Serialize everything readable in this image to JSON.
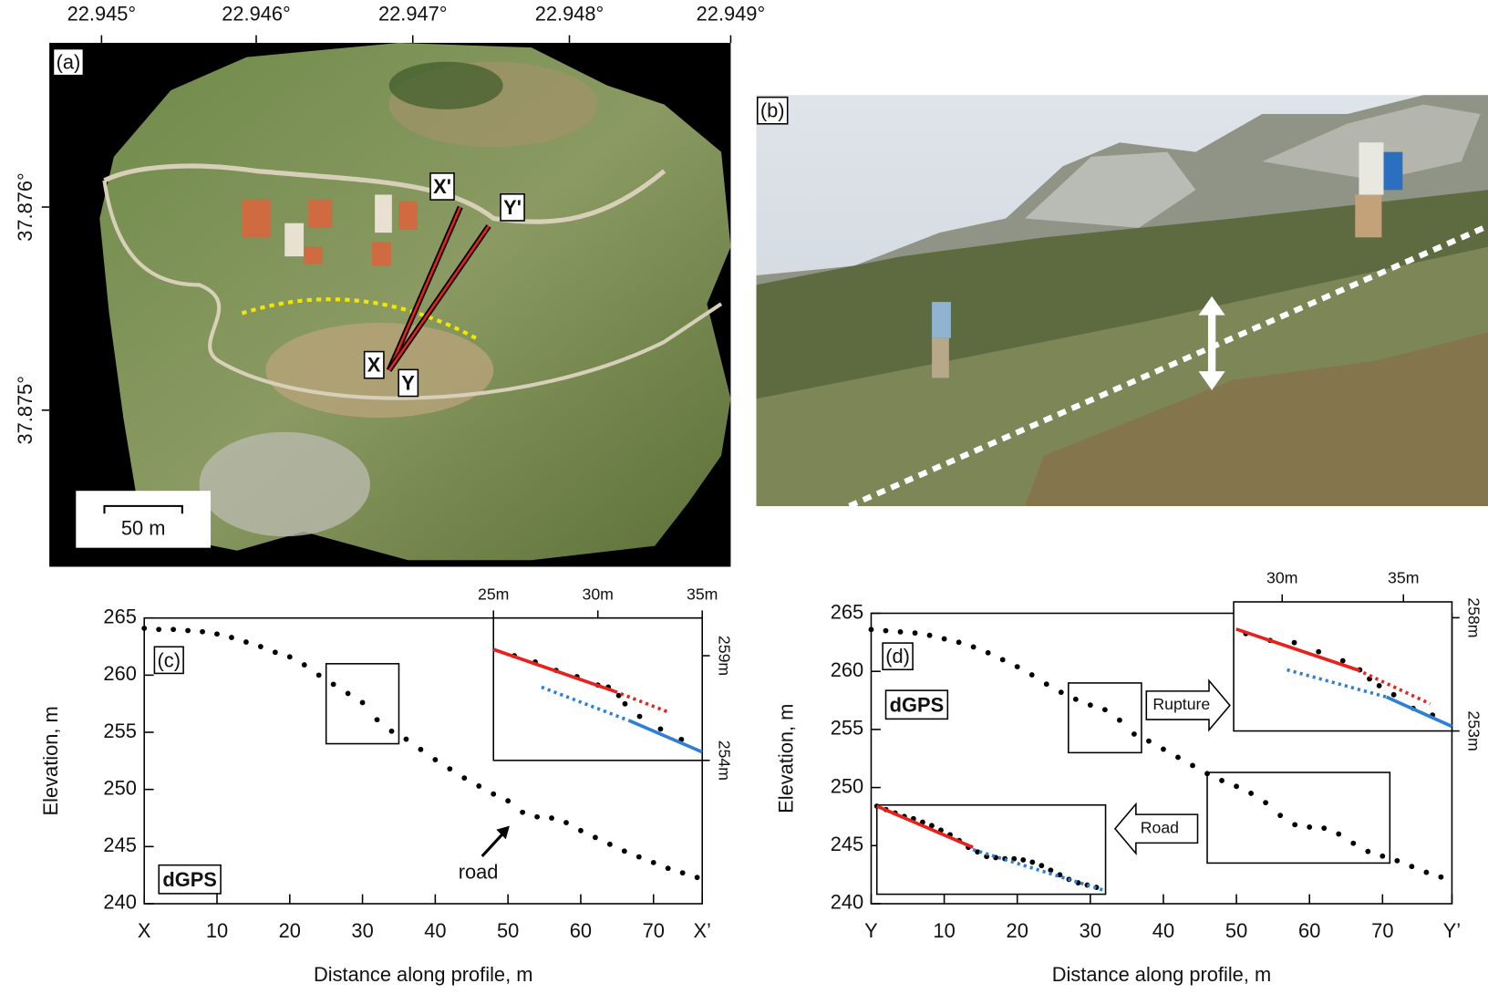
{
  "map": {
    "label": "(a)",
    "lon_ticks": [
      "22.945°",
      "22.946°",
      "22.947°",
      "22.948°",
      "22.949°"
    ],
    "lat_ticks": [
      "37.876°",
      "37.875°"
    ],
    "profile_labels": [
      "X'",
      "Y'",
      "X",
      "Y"
    ],
    "scale_bar": "50 m"
  },
  "photo": {
    "label": "(b)"
  },
  "chart_data": [
    {
      "type": "scatter",
      "panel_label": "(c)",
      "xlabel": "Distance along profile, m",
      "ylabel": "Elevation, m",
      "x": [
        0,
        2,
        4,
        6,
        8,
        10,
        12,
        14,
        16,
        18,
        20,
        22,
        24,
        26,
        28,
        30,
        32,
        34,
        36,
        38,
        40,
        42,
        44,
        46,
        48,
        50,
        52,
        54,
        56,
        58,
        60,
        62,
        64,
        66,
        68,
        70,
        72,
        74,
        76
      ],
      "values": [
        264.1,
        264.0,
        264.0,
        263.9,
        263.8,
        263.6,
        263.3,
        262.9,
        262.5,
        262.0,
        261.6,
        260.9,
        260.0,
        259.2,
        258.4,
        257.6,
        256.1,
        255.1,
        254.4,
        253.5,
        252.6,
        251.8,
        251.0,
        250.3,
        249.6,
        249.0,
        248.0,
        247.6,
        247.5,
        247.1,
        246.4,
        245.8,
        245.2,
        244.6,
        244.1,
        243.6,
        243.1,
        242.7,
        242.3
      ],
      "color": "#000000",
      "xlim": [
        0,
        76.7
      ],
      "ylim": [
        240,
        265
      ],
      "xticks": [
        {
          "value": 0,
          "label": "X"
        },
        10,
        20,
        30,
        40,
        50,
        60,
        70,
        {
          "value": 76.7,
          "label": "X’"
        }
      ],
      "yticks": [
        240,
        245,
        250,
        255,
        260,
        265
      ],
      "annotations": [
        "dGPS",
        "road"
      ],
      "zoom_boxes": [
        {
          "xlim": [
            25,
            35
          ],
          "ylim": [
            254,
            261
          ]
        }
      ],
      "insets": [
        {
          "xlim": [
            25,
            35
          ],
          "ylim": [
            254,
            260.8
          ],
          "xticks": [
            {
              "value": 25,
              "label": "25m"
            },
            {
              "value": 30,
              "label": "30m"
            },
            {
              "value": 35,
              "label": "35m"
            }
          ],
          "yticks": [
            {
              "value": 254,
              "label": "254m"
            },
            {
              "value": 259,
              "label": "259m"
            }
          ],
          "series": [
            {
              "mode": "points",
              "color": "#000000",
              "x": [
                26,
                27,
                28,
                29,
                30,
                30.5,
                31,
                31.3,
                32,
                33,
                34
              ],
              "values": [
                259.0,
                258.7,
                258.3,
                258.0,
                257.6,
                257.5,
                257.1,
                256.7,
                256.1,
                255.5,
                255.0
              ]
            },
            {
              "mode": "line",
              "style": "solid",
              "color": "#e8211c",
              "x": [
                25,
                30.8
              ],
              "values": [
                259.3,
                257.3
              ]
            },
            {
              "mode": "line",
              "style": "dotted",
              "color": "#e8211c",
              "x": [
                30.8,
                33.4
              ],
              "values": [
                257.3,
                256.3
              ]
            },
            {
              "mode": "line",
              "style": "dotted",
              "color": "#2f7fd6",
              "x": [
                27.3,
                31.5
              ],
              "values": [
                257.5,
                255.9
              ]
            },
            {
              "mode": "line",
              "style": "solid",
              "color": "#2f7fd6",
              "x": [
                31.5,
                35
              ],
              "values": [
                255.9,
                254.4
              ]
            }
          ]
        }
      ]
    },
    {
      "type": "scatter",
      "panel_label": "(d)",
      "xlabel": "Distance along profile, m",
      "ylabel": "Elevation, m",
      "x": [
        0,
        2,
        4,
        6,
        8,
        10,
        12,
        14,
        16,
        18,
        20,
        22,
        24,
        26,
        28,
        30,
        32,
        34,
        36,
        38,
        40,
        42,
        44,
        46,
        48,
        50,
        52,
        54,
        56,
        58,
        60,
        62,
        64,
        66,
        68,
        70,
        72,
        74,
        76,
        78
      ],
      "values": [
        263.6,
        263.5,
        263.4,
        263.3,
        263.1,
        262.8,
        262.5,
        262.1,
        261.6,
        261.0,
        260.4,
        259.7,
        258.9,
        258.2,
        257.6,
        257.1,
        256.7,
        255.8,
        254.6,
        254.0,
        253.3,
        252.6,
        251.9,
        251.2,
        250.6,
        250.1,
        249.5,
        248.7,
        247.6,
        246.8,
        246.6,
        246.5,
        246.0,
        245.2,
        244.5,
        244.1,
        243.7,
        243.2,
        242.7,
        242.3
      ],
      "color": "#000000",
      "xlim": [
        0,
        79.5
      ],
      "ylim": [
        240,
        265
      ],
      "xticks": [
        {
          "value": 0,
          "label": "Y"
        },
        10,
        20,
        30,
        40,
        50,
        60,
        70,
        {
          "value": 79.5,
          "label": "Y’"
        }
      ],
      "yticks": [
        240,
        245,
        250,
        255,
        260,
        265
      ],
      "annotations": [
        "dGPS",
        "Rupture",
        "Road"
      ],
      "zoom_boxes": [
        {
          "xlim": [
            27,
            37
          ],
          "ylim": [
            253,
            259
          ]
        },
        {
          "xlim": [
            46,
            71
          ],
          "ylim": [
            243.5,
            251.3
          ]
        }
      ],
      "insets": [
        {
          "xlim": [
            28,
            37
          ],
          "ylim": [
            253,
            258.7
          ],
          "xticks": [
            {
              "value": 30,
              "label": "30m"
            },
            {
              "value": 35,
              "label": "35m"
            }
          ],
          "yticks": [
            {
              "value": 253,
              "label": "253m"
            },
            {
              "value": 258,
              "label": "258m"
            }
          ],
          "series": [
            {
              "mode": "points",
              "color": "#000000",
              "x": [
                28.5,
                29.5,
                30.5,
                31.5,
                32.5,
                33.2,
                33.6,
                34,
                34.6,
                35.4,
                36.2
              ],
              "values": [
                257.3,
                257.0,
                256.9,
                256.5,
                256.1,
                255.7,
                255.3,
                255.0,
                254.6,
                254.0,
                253.7
              ]
            },
            {
              "mode": "line",
              "style": "solid",
              "color": "#e8211c",
              "x": [
                28.1,
                33.1
              ],
              "values": [
                257.5,
                255.7
              ]
            },
            {
              "mode": "line",
              "style": "dotted",
              "color": "#e8211c",
              "x": [
                33.1,
                36.1
              ],
              "values": [
                255.7,
                254.2
              ]
            },
            {
              "mode": "line",
              "style": "dotted",
              "color": "#2f7fd6",
              "x": [
                30.2,
                34.3
              ],
              "values": [
                255.7,
                254.5
              ]
            },
            {
              "mode": "line",
              "style": "solid",
              "color": "#2f7fd6",
              "x": [
                34.3,
                37
              ],
              "values": [
                254.5,
                253.2
              ]
            }
          ]
        },
        {
          "xlim": [
            46,
            71
          ],
          "ylim": [
            243.5,
            251.3
          ],
          "xticks": [],
          "yticks": [],
          "series": [
            {
              "mode": "points",
              "color": "#000000",
              "x": [
                46,
                47,
                48,
                49,
                50,
                51,
                52,
                53,
                54,
                55,
                56,
                57,
                58,
                59,
                60,
                61,
                62,
                63,
                64,
                65,
                66,
                67,
                68,
                69,
                70
              ],
              "values": [
                251.2,
                250.9,
                250.6,
                250.3,
                250.1,
                249.8,
                249.5,
                249.1,
                248.7,
                248.2,
                247.6,
                247.2,
                246.8,
                246.7,
                246.6,
                246.6,
                246.5,
                246.3,
                246.0,
                245.6,
                245.2,
                244.8,
                244.5,
                244.3,
                244.1
              ]
            },
            {
              "mode": "line",
              "style": "solid",
              "color": "#e8211c",
              "x": [
                46,
                56.5
              ],
              "values": [
                251.2,
                247.6
              ]
            },
            {
              "mode": "line",
              "style": "dotted",
              "color": "#2f7fd6",
              "x": [
                56.5,
                71
              ],
              "values": [
                247.4,
                243.8
              ]
            }
          ]
        }
      ]
    }
  ]
}
